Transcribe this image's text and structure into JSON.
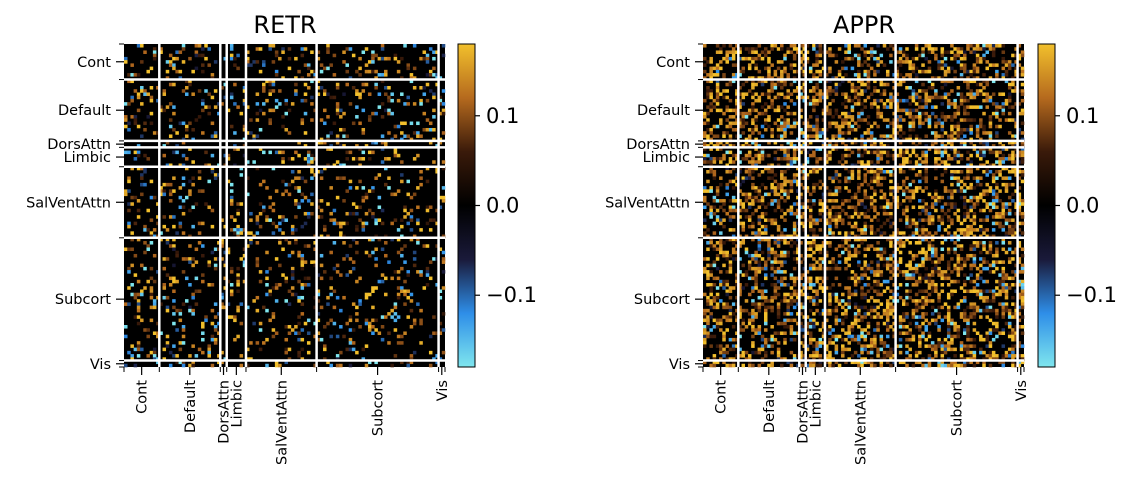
{
  "chart_data": [
    {
      "type": "heatmap",
      "title": "RETR",
      "row_labels": [
        "Cont",
        "Default",
        "DorsAttn",
        "Limbic",
        "SalVentAttn",
        "Subcort",
        "Vis"
      ],
      "col_labels": [
        "Cont",
        "Default",
        "DorsAttn",
        "Limbic",
        "SalVentAttn",
        "Subcort",
        "Vis"
      ],
      "colorbar": {
        "ticks": [
          0.1,
          0.0,
          -0.1
        ],
        "tick_labels": [
          "0.1",
          "0.0",
          "−0.1"
        ],
        "range": [
          -0.18,
          0.18
        ]
      },
      "colormap": [
        "#7fe6ee",
        "#2e8ee8",
        "#1a1a3a",
        "#000000",
        "#3a1a0a",
        "#b56a1e",
        "#f2c02c"
      ],
      "network_sizes": [
        11,
        19,
        2,
        6,
        22,
        38,
        2
      ],
      "density": 0.16,
      "pos_fraction": 0.72,
      "seed": 7
    },
    {
      "type": "heatmap",
      "title": "APPR",
      "row_labels": [
        "Cont",
        "Default",
        "DorsAttn",
        "Limbic",
        "SalVentAttn",
        "Subcort",
        "Vis"
      ],
      "col_labels": [
        "Cont",
        "Default",
        "DorsAttn",
        "Limbic",
        "SalVentAttn",
        "Subcort",
        "Vis"
      ],
      "colorbar": {
        "ticks": [
          0.1,
          0.0,
          -0.1
        ],
        "tick_labels": [
          "0.1",
          "0.0",
          "−0.1"
        ],
        "range": [
          -0.18,
          0.18
        ]
      },
      "colormap": [
        "#7fe6ee",
        "#2e8ee8",
        "#1a1a3a",
        "#000000",
        "#3a1a0a",
        "#b56a1e",
        "#f2c02c"
      ],
      "network_sizes": [
        11,
        19,
        2,
        6,
        22,
        38,
        2
      ],
      "density": 0.42,
      "pos_fraction": 0.86,
      "seed": 23
    }
  ]
}
